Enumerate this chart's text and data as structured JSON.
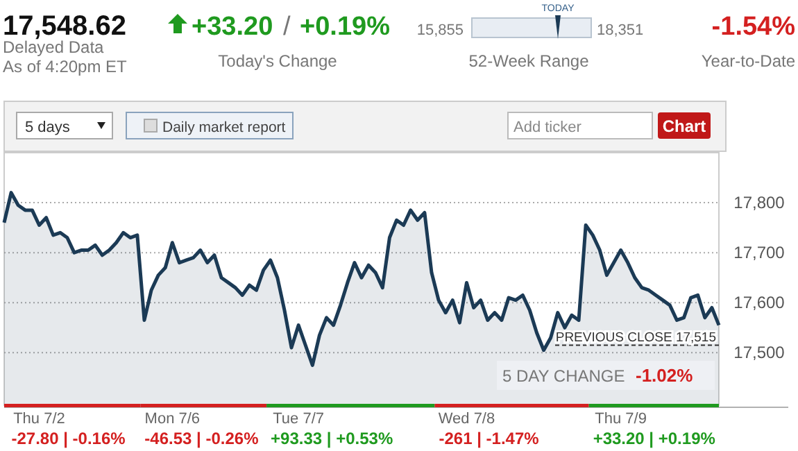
{
  "chart_data": {
    "type": "area",
    "title": "17,548.62",
    "categories": [
      null,
      null,
      null,
      null,
      null,
      "Thu 7/2",
      null,
      null,
      null,
      null,
      null,
      null,
      null,
      null,
      null,
      null,
      null,
      null,
      null,
      null,
      null,
      null,
      null,
      null,
      "Mon 7/6",
      null,
      null,
      null,
      null,
      null,
      null,
      null,
      null,
      null,
      null,
      null,
      null,
      null,
      null,
      null,
      null,
      null,
      "Tue 7/7",
      null,
      null,
      null,
      null,
      null,
      null,
      null,
      null,
      null,
      null,
      null,
      null,
      null,
      null,
      null,
      null,
      null,
      null,
      null,
      null,
      null,
      null,
      null,
      "Wed 7/8",
      null,
      null,
      null,
      null,
      null,
      null,
      null,
      null,
      null,
      null,
      null,
      null,
      null,
      null,
      null,
      null,
      null,
      null,
      null,
      null,
      null,
      "Thu 7/9",
      null,
      null,
      null,
      null,
      null,
      null,
      null,
      null,
      null,
      null,
      null,
      null,
      null,
      null
    ],
    "series": [
      {
        "color": "#1b3a55",
        "values": [
          17760,
          17820,
          17795,
          17785,
          17785,
          17755,
          17770,
          17735,
          17740,
          17730,
          17700,
          17705,
          17705,
          17715,
          17695,
          17705,
          17720,
          17740,
          17730,
          17735,
          17565,
          17625,
          17655,
          17670,
          17720,
          17680,
          17685,
          17690,
          17705,
          17680,
          17695,
          17650,
          17640,
          17630,
          17615,
          17635,
          17625,
          17665,
          17685,
          17650,
          17585,
          17510,
          17555,
          17515,
          17475,
          17535,
          17570,
          17555,
          17595,
          17640,
          17680,
          17650,
          17675,
          17660,
          17630,
          17730,
          17765,
          17755,
          17785,
          17765,
          17780,
          17660,
          17605,
          17580,
          17605,
          17560,
          17640,
          17590,
          17605,
          17565,
          17580,
          17565,
          17610,
          17605,
          17615,
          17585,
          17540,
          17505,
          17530,
          17580,
          17550,
          17575,
          17565,
          17755,
          17735,
          17705,
          17655,
          17680,
          17705,
          17680,
          17650,
          17630,
          17625,
          17615,
          17605,
          17595,
          17565,
          17570,
          17610,
          17615,
          17570,
          17590,
          17555
        ]
      }
    ],
    "ylim": [
      17395,
      17900
    ],
    "yticks": [
      {
        "value": 17500,
        "label": "17,500"
      },
      {
        "value": 17600,
        "label": "17,600"
      },
      {
        "value": 17700,
        "label": "17,700"
      },
      {
        "value": 17800,
        "label": "17,800"
      }
    ],
    "grid": "y",
    "line_style": "solid",
    "ref_lines": [
      {
        "axis": "y",
        "value": 17515,
        "label": "PREVIOUS CLOSE 17,515",
        "line_style": "dashed",
        "color": "#333333"
      }
    ],
    "annotations": [
      "Delayed Data",
      "As of 4:20pm ET",
      "+33.20",
      "/",
      "+0.19%",
      "Today's Change",
      "TODAY",
      "15,855",
      "18,351",
      "52-Week Range",
      "-1.54%",
      "Year-to-Date",
      "5 days",
      "Daily market report",
      "Add ticker",
      "Chart",
      "5 DAY CHANGE",
      "-1.02%",
      "-27.80 | -0.16%",
      "-46.53 | -0.26%",
      "+93.33 | +0.53%",
      "-261 | -1.47%",
      "+33.20 | +0.19%"
    ]
  }
}
